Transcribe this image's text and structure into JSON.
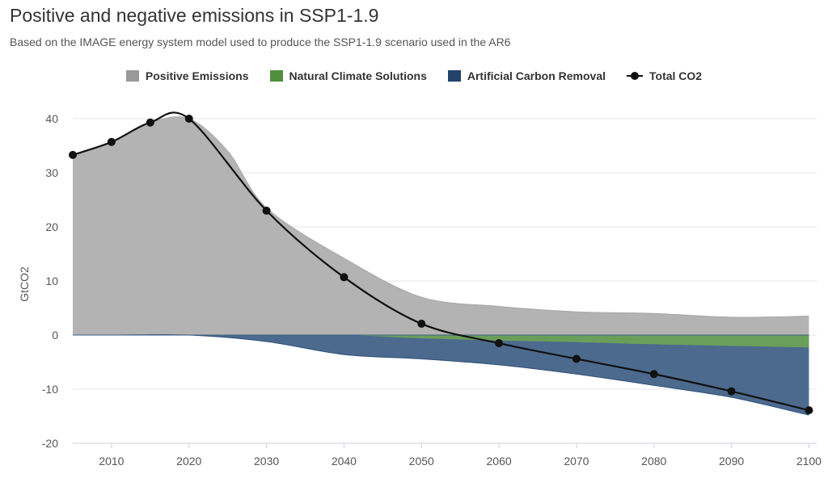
{
  "chart_data": {
    "type": "area",
    "title": "Positive and negative emissions in SSP1-1.9",
    "subtitle": "Based on the IMAGE energy system model used to produce the SSP1-1.9 scenario used in the AR6",
    "xlabel": "",
    "ylabel": "GtCO2",
    "xlim": [
      2005,
      2101
    ],
    "ylim": [
      -20,
      40
    ],
    "x_ticks": [
      2010,
      2020,
      2030,
      2040,
      2050,
      2060,
      2070,
      2080,
      2090,
      2100
    ],
    "y_ticks": [
      40,
      30,
      20,
      10,
      0,
      -10,
      -20
    ],
    "grid": true,
    "legend_position": "top-center",
    "series": [
      {
        "name": "Positive Emissions",
        "kind": "area",
        "color": "#b3b3b3",
        "x": [
          2005,
          2010,
          2015,
          2020,
          2025,
          2030,
          2040,
          2050,
          2060,
          2070,
          2080,
          2090,
          2100
        ],
        "values": [
          33.3,
          35.7,
          39.3,
          40.0,
          34.0,
          23.5,
          14.2,
          7.0,
          5.3,
          4.3,
          4.0,
          3.3,
          3.5
        ]
      },
      {
        "name": "Natural Climate Solutions",
        "kind": "area",
        "color": "#6a9f5a",
        "x": [
          2005,
          2010,
          2020,
          2030,
          2040,
          2050,
          2060,
          2070,
          2080,
          2090,
          2100
        ],
        "values": [
          0,
          0,
          0,
          0,
          0,
          -0.6,
          -1.0,
          -1.3,
          -1.7,
          -2.0,
          -2.3
        ]
      },
      {
        "name": "Artificial Carbon Removal",
        "kind": "area",
        "color": "#4c6a8e",
        "x": [
          2005,
          2010,
          2020,
          2030,
          2040,
          2050,
          2060,
          2070,
          2080,
          2090,
          2100
        ],
        "values": [
          0,
          0,
          0,
          -1.2,
          -3.6,
          -4.4,
          -5.5,
          -7.2,
          -9.3,
          -11.5,
          -14.8
        ]
      },
      {
        "name": "Total CO2",
        "kind": "line",
        "color": "#111111",
        "x": [
          2005,
          2010,
          2015,
          2020,
          2030,
          2040,
          2050,
          2060,
          2070,
          2080,
          2090,
          2100
        ],
        "values": [
          33.3,
          35.7,
          39.3,
          40.0,
          23.0,
          10.7,
          2.1,
          -1.5,
          -4.4,
          -7.2,
          -10.4,
          -13.9
        ]
      }
    ]
  }
}
